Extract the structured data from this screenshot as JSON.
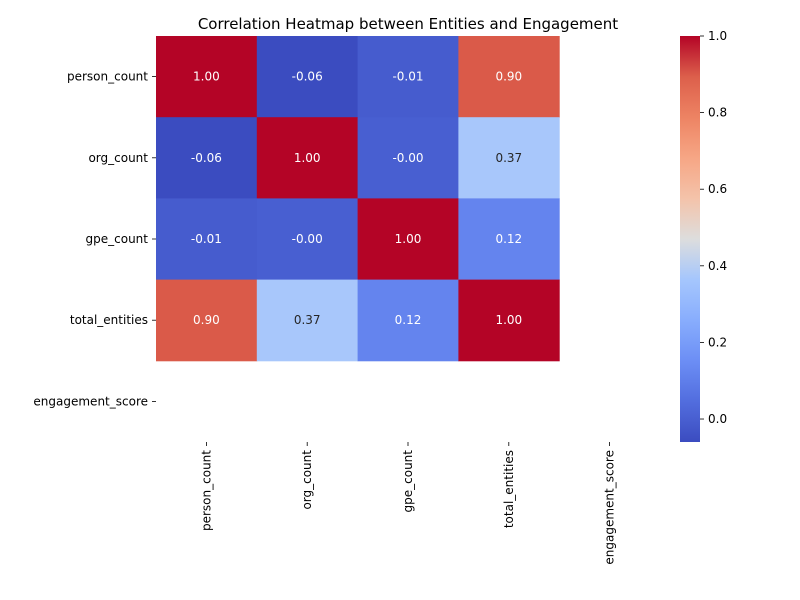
{
  "chart_data": {
    "type": "heatmap",
    "title": "Correlation Heatmap between Entities and Engagement",
    "rows": [
      "person_count",
      "org_count",
      "gpe_count",
      "total_entities",
      "engagement_score"
    ],
    "columns": [
      "person_count",
      "org_count",
      "gpe_count",
      "total_entities",
      "engagement_score"
    ],
    "values": [
      [
        1.0,
        -0.06,
        -0.01,
        0.9,
        null
      ],
      [
        -0.06,
        1.0,
        -0.0,
        0.37,
        null
      ],
      [
        -0.01,
        -0.0,
        1.0,
        0.12,
        null
      ],
      [
        0.9,
        0.37,
        0.12,
        1.0,
        null
      ],
      [
        null,
        null,
        null,
        null,
        null
      ]
    ],
    "value_labels": [
      [
        "1.00",
        "-0.06",
        "-0.01",
        "0.90",
        ""
      ],
      [
        "-0.06",
        "1.00",
        "-0.00",
        "0.37",
        ""
      ],
      [
        "-0.01",
        "-0.00",
        "1.00",
        "0.12",
        ""
      ],
      [
        "0.90",
        "0.37",
        "0.12",
        "1.00",
        ""
      ],
      [
        "",
        "",
        "",
        "",
        ""
      ]
    ],
    "colormap": "coolwarm",
    "colorbar": {
      "range": [
        -0.06,
        1.0
      ],
      "ticks": [
        0.0,
        0.2,
        0.4,
        0.6,
        0.8,
        1.0
      ],
      "tick_labels": [
        "0.0",
        "0.2",
        "0.4",
        "0.6",
        "0.8",
        "1.0"
      ],
      "placement": "right"
    },
    "xlabel": "",
    "ylabel": "",
    "x_tick_rotation": "vertical"
  }
}
